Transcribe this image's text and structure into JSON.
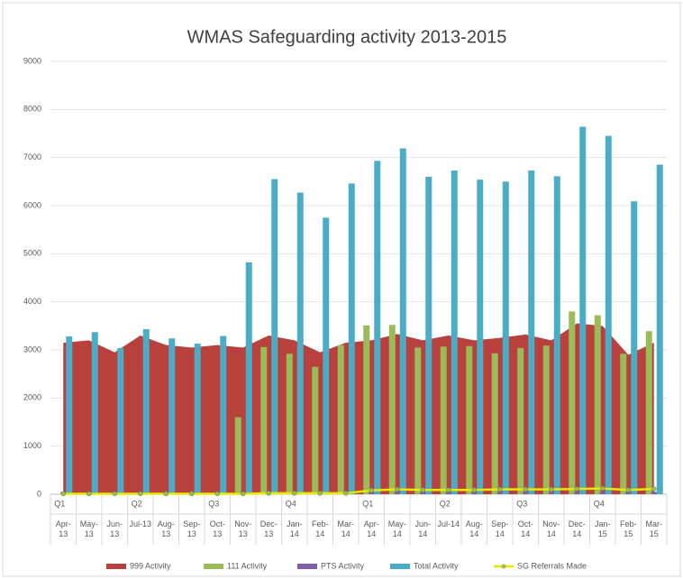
{
  "chart_data": {
    "type": "combo",
    "title": "WMAS Safeguarding activity 2013-2015",
    "categories": [
      "Apr-13",
      "May-13",
      "Jun-13",
      "Jul-13",
      "Aug-13",
      "Sep-13",
      "Oct-13",
      "Nov-13",
      "Dec-13",
      "Jan-14",
      "Feb-14",
      "Mar-14",
      "Apr-14",
      "May-14",
      "Jun-14",
      "Jul-14",
      "Aug-14",
      "Sep-14",
      "Oct-14",
      "Nov-14",
      "Dec-14",
      "Jan-15",
      "Feb-15",
      "Mar-15"
    ],
    "quarter_labels": [
      "Q1",
      null,
      null,
      "Q2",
      null,
      null,
      "Q3",
      null,
      null,
      "Q4",
      null,
      null,
      "Q1",
      null,
      null,
      "Q2",
      null,
      null,
      "Q3",
      null,
      null,
      "Q4",
      null,
      null
    ],
    "series": [
      {
        "name": "999 Activity",
        "type": "area",
        "color": "#b8413d",
        "values": [
          3150,
          3200,
          2950,
          3300,
          3100,
          3050,
          3100,
          3050,
          3300,
          3200,
          2950,
          3150,
          3200,
          3330,
          3200,
          3300,
          3200,
          3250,
          3320,
          3200,
          3550,
          3500,
          2900,
          3150
        ]
      },
      {
        "name": "111 Activity",
        "type": "bar",
        "color": "#9bbb59",
        "values": [
          0,
          0,
          0,
          0,
          0,
          0,
          0,
          1600,
          3060,
          2920,
          2650,
          3100,
          3510,
          3520,
          3050,
          3070,
          3080,
          2930,
          3040,
          3090,
          3800,
          3720,
          2920,
          3390
        ]
      },
      {
        "name": "PTS Activity",
        "type": "bar",
        "color": "#7f5fa8",
        "values": [
          50,
          50,
          50,
          50,
          50,
          50,
          50,
          50,
          50,
          50,
          50,
          50,
          50,
          50,
          50,
          50,
          50,
          50,
          50,
          50,
          50,
          50,
          50,
          50
        ]
      },
      {
        "name": "Total Activity",
        "type": "bar",
        "color": "#4bacc6",
        "values": [
          3280,
          3370,
          3040,
          3430,
          3240,
          3130,
          3290,
          4820,
          6550,
          6270,
          5750,
          6460,
          6930,
          7190,
          6600,
          6730,
          6540,
          6500,
          6730,
          6610,
          7640,
          7450,
          6090,
          6850
        ]
      },
      {
        "name": "SG Referrals Made",
        "type": "line",
        "color": "#e8e800",
        "values": [
          10,
          10,
          10,
          10,
          10,
          10,
          10,
          10,
          20,
          20,
          20,
          20,
          80,
          100,
          90,
          90,
          90,
          100,
          100,
          100,
          110,
          120,
          90,
          110
        ]
      }
    ],
    "ylim": [
      0,
      9000
    ],
    "yticks": [
      0,
      1000,
      2000,
      3000,
      4000,
      5000,
      6000,
      7000,
      8000,
      9000
    ],
    "grid": true
  }
}
